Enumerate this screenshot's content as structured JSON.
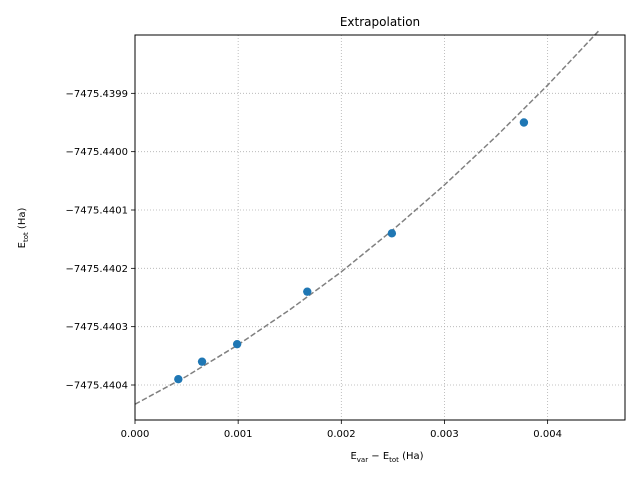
{
  "chart_data": {
    "type": "scatter",
    "title": "Extrapolation",
    "xlabel": {
      "main": "E",
      "sub1": "var",
      "mid": " − E",
      "sub2": "tot",
      "unit": " (Ha)"
    },
    "ylabel": {
      "main": "E",
      "sub": "tot",
      "unit": " (Ha)"
    },
    "xlim": [
      0.0,
      0.00475
    ],
    "ylim": [
      -7475.44046,
      -7475.4398
    ],
    "x_ticks": [
      0.0,
      0.001,
      0.002,
      0.003,
      0.004
    ],
    "x_tick_labels": [
      "0.000",
      "0.001",
      "0.002",
      "0.003",
      "0.004"
    ],
    "y_ticks": [
      -7475.4404,
      -7475.4403,
      -7475.4402,
      -7475.4401,
      -7475.44,
      -7475.4399
    ],
    "y_tick_labels": [
      "−7475.4404",
      "−7475.4403",
      "−7475.4402",
      "−7475.4401",
      "−7475.4400",
      "−7475.4399"
    ],
    "grid": true,
    "points": {
      "x": [
        0.00042,
        0.00065,
        0.00099,
        0.00167,
        0.00249,
        0.00377
      ],
      "y": [
        -7475.44039,
        -7475.44036,
        -7475.44033,
        -7475.44024,
        -7475.44014,
        -7475.43995
      ],
      "color": "#1f77b4"
    },
    "fit_line": {
      "x": [
        0.0,
        0.0005,
        0.001,
        0.0015,
        0.002,
        0.0025,
        0.003,
        0.0035,
        0.004,
        0.0045
      ],
      "y": [
        -7475.440433,
        -7475.440385,
        -7475.440331,
        -7475.440271,
        -7475.440206,
        -7475.440134,
        -7475.440057,
        -7475.439974,
        -7475.439886,
        -7475.439792
      ],
      "color": "#808080",
      "style": "dashed"
    }
  }
}
